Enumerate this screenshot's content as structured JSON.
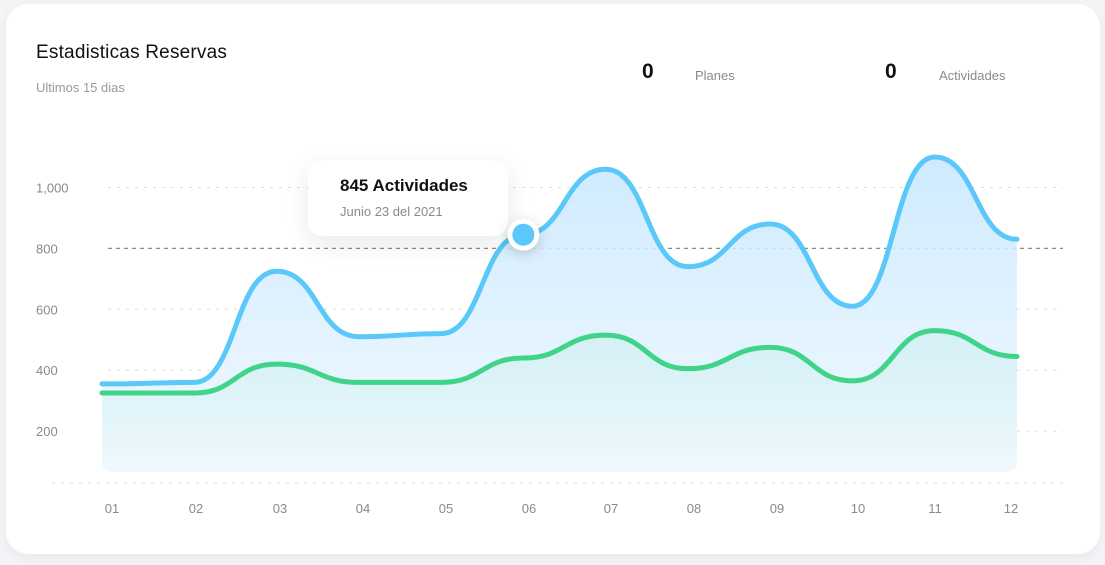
{
  "header": {
    "title": "Estadisticas Reservas",
    "subtitle": "Ultimos 15 dias"
  },
  "stats": [
    {
      "value": "0",
      "label": "Planes"
    },
    {
      "value": "0",
      "label": "Actividades"
    }
  ],
  "tooltip": {
    "title": "845 Actividades",
    "subtitle": "Junio 23 del 2021"
  },
  "colors": {
    "blue": "#5bc8fa",
    "green": "#3fd487",
    "grid": "#dcdcdc",
    "highlight_line": "#888888"
  },
  "chart_data": {
    "type": "area",
    "categories": [
      "01",
      "02",
      "03",
      "04",
      "05",
      "06",
      "07",
      "08",
      "09",
      "10",
      "11",
      "12"
    ],
    "y_ticks": [
      "1,000",
      "800",
      "600",
      "400",
      "200"
    ],
    "y_tick_values": [
      1000,
      800,
      600,
      400,
      200
    ],
    "ylim": [
      0,
      1100
    ],
    "grid": true,
    "highlight_line_value": 800,
    "series": [
      {
        "color": "blue",
        "values": [
          355,
          360,
          725,
          510,
          520,
          845,
          1060,
          740,
          880,
          610,
          1100,
          830
        ]
      },
      {
        "color": "green",
        "values": [
          325,
          325,
          420,
          360,
          360,
          440,
          515,
          405,
          475,
          365,
          530,
          445
        ]
      }
    ],
    "highlight_point": {
      "series": 0,
      "x": "06",
      "value": 845
    }
  }
}
